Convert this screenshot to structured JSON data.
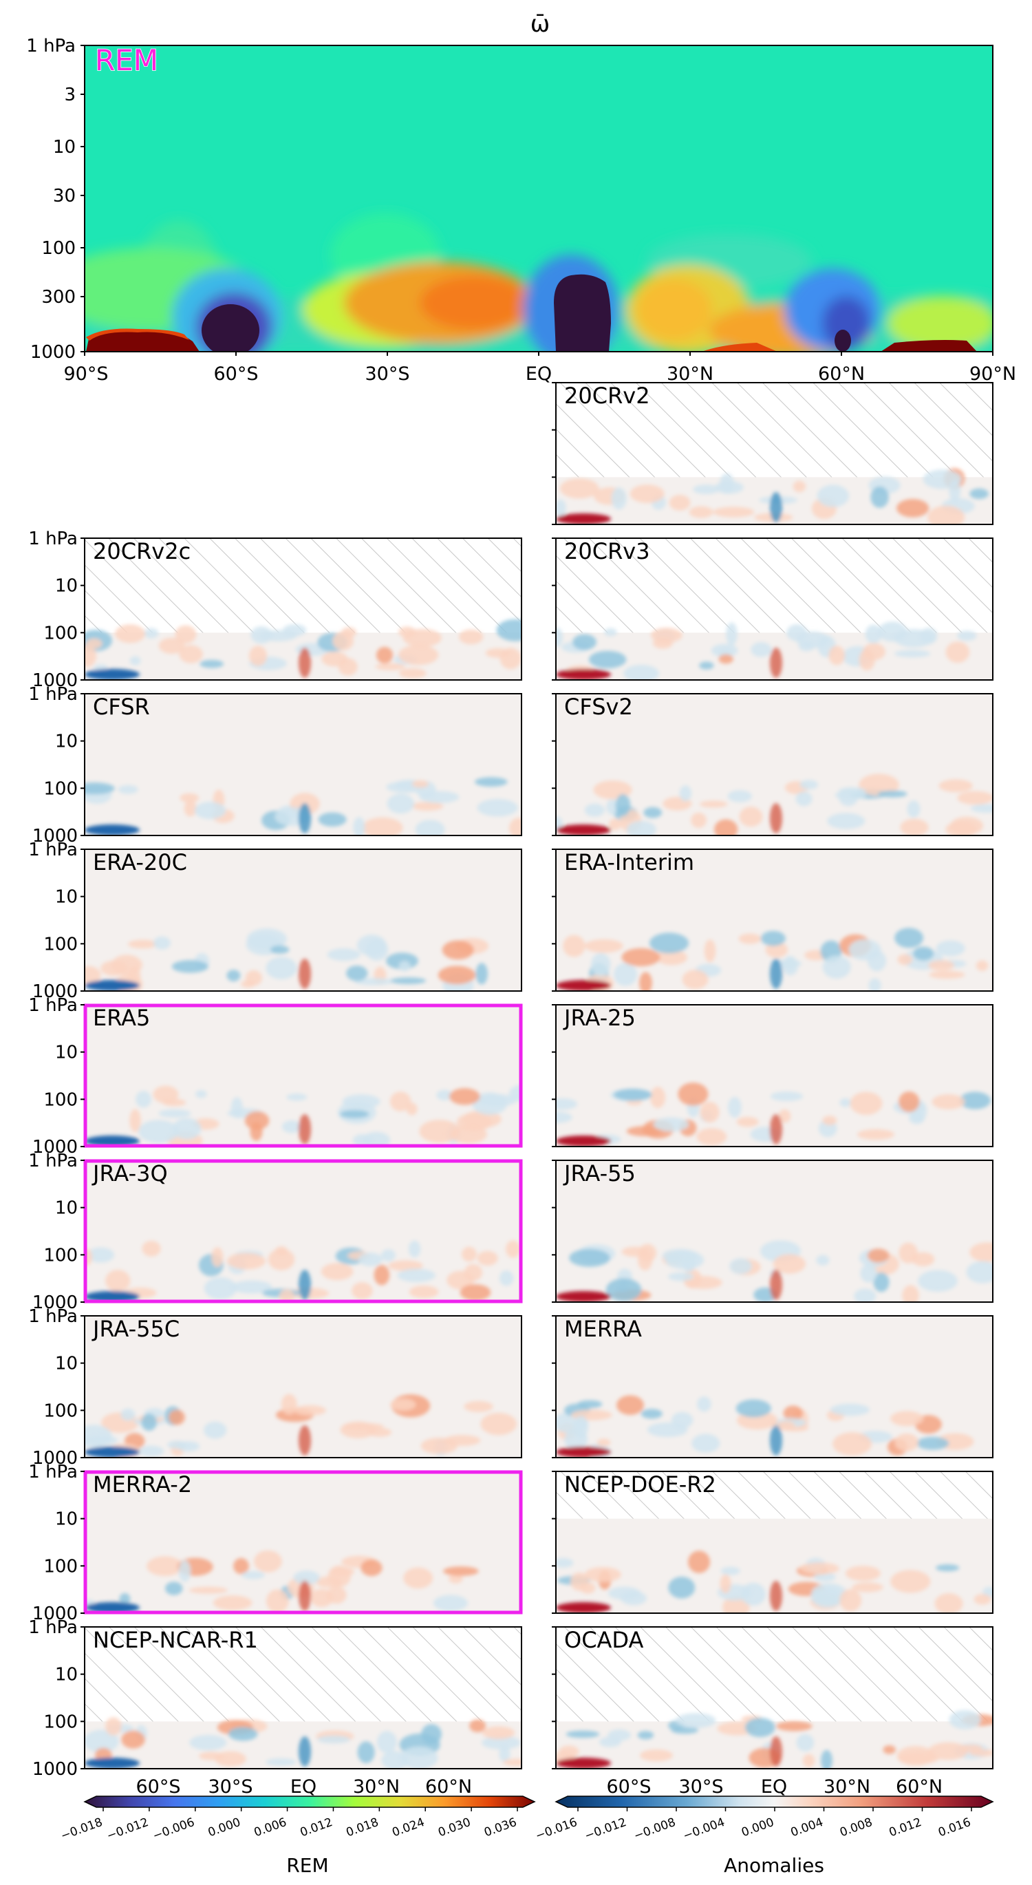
{
  "figure": {
    "title": "ω̄"
  },
  "chart_data": {
    "type": "heatmap",
    "variable": "ω̄",
    "x_ticks": [
      "90°S",
      "60°S",
      "30°S",
      "EQ",
      "30°N",
      "60°N",
      "90°N"
    ],
    "x_ticks_bottom": [
      "60°S",
      "30°S",
      "EQ",
      "30°N",
      "60°N"
    ],
    "y_ticks_rem": [
      "1 hPa",
      "3",
      "10",
      "30",
      "100",
      "300",
      "1000"
    ],
    "y_ticks_small": [
      "1 hPa",
      "10",
      "100",
      "1000"
    ],
    "ylim": [
      1000,
      1
    ],
    "y_scale": "log",
    "rem_panel": {
      "label": "REM",
      "label_color": "#ff22dd",
      "colormap": "turbo",
      "features": [
        {
          "lat": 80,
          "p": 700,
          "value": 0.036
        },
        {
          "lat": 62,
          "p": 600,
          "value": -0.018
        },
        {
          "lat": 20,
          "p": 350,
          "value": 0.024
        },
        {
          "lat": -10,
          "p": 450,
          "value": -0.018
        },
        {
          "lat": -30,
          "p": 350,
          "value": 0.02
        },
        {
          "lat": -60,
          "p": 450,
          "value": -0.012
        },
        {
          "lat": -72,
          "p": 800,
          "value": 0.03
        }
      ]
    },
    "anomaly_panels": [
      {
        "label": "20CRv2",
        "top_hpa": 100,
        "highlight": false
      },
      {
        "label": "20CRv2c",
        "top_hpa": 100,
        "highlight": false
      },
      {
        "label": "20CRv3",
        "top_hpa": 100,
        "highlight": false
      },
      {
        "label": "CFSR",
        "top_hpa": 1,
        "highlight": false
      },
      {
        "label": "CFSv2",
        "top_hpa": 1,
        "highlight": false
      },
      {
        "label": "ERA-20C",
        "top_hpa": 1,
        "highlight": false
      },
      {
        "label": "ERA-Interim",
        "top_hpa": 1,
        "highlight": false
      },
      {
        "label": "ERA5",
        "top_hpa": 1,
        "highlight": true
      },
      {
        "label": "JRA-25",
        "top_hpa": 1,
        "highlight": false
      },
      {
        "label": "JRA-3Q",
        "top_hpa": 1,
        "highlight": true
      },
      {
        "label": "JRA-55",
        "top_hpa": 1,
        "highlight": false
      },
      {
        "label": "JRA-55C",
        "top_hpa": 1,
        "highlight": false
      },
      {
        "label": "MERRA",
        "top_hpa": 1,
        "highlight": false
      },
      {
        "label": "MERRA-2",
        "top_hpa": 1,
        "highlight": true
      },
      {
        "label": "NCEP-DOE-R2",
        "top_hpa": 10,
        "highlight": false
      },
      {
        "label": "NCEP-NCAR-R1",
        "top_hpa": 100,
        "highlight": false
      },
      {
        "label": "OCADA",
        "top_hpa": 100,
        "highlight": false
      }
    ],
    "colorbar_rem": {
      "label": "REM",
      "ticks": [
        "−0.018",
        "−0.012",
        "−0.006",
        "0.000",
        "0.006",
        "0.012",
        "0.018",
        "0.024",
        "0.030",
        "0.036"
      ],
      "range": [
        -0.018,
        0.036
      ]
    },
    "colorbar_anom": {
      "label": "Anomalies",
      "ticks": [
        "−0.016",
        "−0.012",
        "−0.008",
        "−0.004",
        "0.000",
        "0.004",
        "0.008",
        "0.012",
        "0.016"
      ],
      "range": [
        -0.016,
        0.016
      ]
    },
    "highlight_color": "#ee22ee"
  }
}
